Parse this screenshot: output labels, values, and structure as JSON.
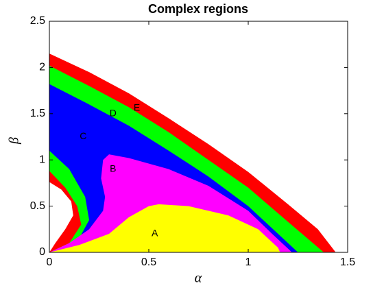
{
  "chart_data": {
    "type": "region",
    "title": "Complex regions",
    "xlabel": "α",
    "ylabel": "β",
    "xlim": [
      0,
      1.5
    ],
    "ylim": [
      0,
      2.5
    ],
    "xticks": [
      0,
      0.5,
      1,
      1.5
    ],
    "yticks": [
      0,
      0.5,
      1,
      1.5,
      2,
      2.5
    ],
    "series": [
      {
        "color": "#ff0000",
        "x": [
          0,
          0.2,
          0.4,
          0.6,
          0.8,
          1.0,
          1.2,
          1.35,
          1.44,
          0,
          0.03,
          0.08,
          0.12,
          0.11,
          0.06,
          0
        ],
        "values": [
          2.15,
          1.95,
          1.72,
          1.45,
          1.17,
          0.87,
          0.52,
          0.25,
          0,
          0,
          0.1,
          0.25,
          0.4,
          0.55,
          0.68,
          0.76
        ]
      },
      {
        "color": "#00ff00",
        "x": [
          0,
          0.2,
          0.4,
          0.6,
          0.8,
          1.0,
          1.2,
          1.38,
          0,
          0.1,
          0.16,
          0.14,
          0.08,
          0
        ],
        "values": [
          2.02,
          1.8,
          1.57,
          1.3,
          1.0,
          0.7,
          0.33,
          0,
          0,
          0.1,
          0.3,
          0.5,
          0.7,
          0.88
        ]
      },
      {
        "color": "#0000ff",
        "x": [
          0,
          0.2,
          0.4,
          0.6,
          0.8,
          1.0,
          1.15,
          1.25,
          0,
          0.05,
          0.15,
          0.2,
          0.18,
          0.1,
          0
        ],
        "values": [
          1.82,
          1.6,
          1.37,
          1.1,
          0.82,
          0.5,
          0.2,
          0,
          0,
          0.03,
          0.15,
          0.35,
          0.6,
          0.9,
          1.1
        ]
      },
      {
        "color": "#ff00ff",
        "x": [
          0.27,
          0.3,
          0.4,
          0.6,
          0.8,
          1.0,
          1.12,
          1.22,
          0,
          0.1,
          0.2,
          0.27,
          0.28,
          0.26
        ],
        "values": [
          1.0,
          1.06,
          1.02,
          0.9,
          0.72,
          0.45,
          0.2,
          0,
          0,
          0.1,
          0.25,
          0.45,
          0.6,
          0.8
        ]
      },
      {
        "color": "#ffff00",
        "x": [
          0,
          0.15,
          0.3,
          0.4,
          0.5,
          0.55,
          0.7,
          0.9,
          1.05,
          1.15,
          1.16
        ],
        "values": [
          0,
          0.08,
          0.2,
          0.38,
          0.5,
          0.52,
          0.5,
          0.4,
          0.25,
          0.05,
          0
        ]
      }
    ],
    "annotations": [
      {
        "text": "A",
        "x": 0.53,
        "y": 0.2
      },
      {
        "text": "B",
        "x": 0.32,
        "y": 0.9
      },
      {
        "text": "C",
        "x": 0.17,
        "y": 1.25
      },
      {
        "text": "D",
        "x": 0.32,
        "y": 1.5
      },
      {
        "text": "E",
        "x": 0.44,
        "y": 1.56
      }
    ]
  }
}
